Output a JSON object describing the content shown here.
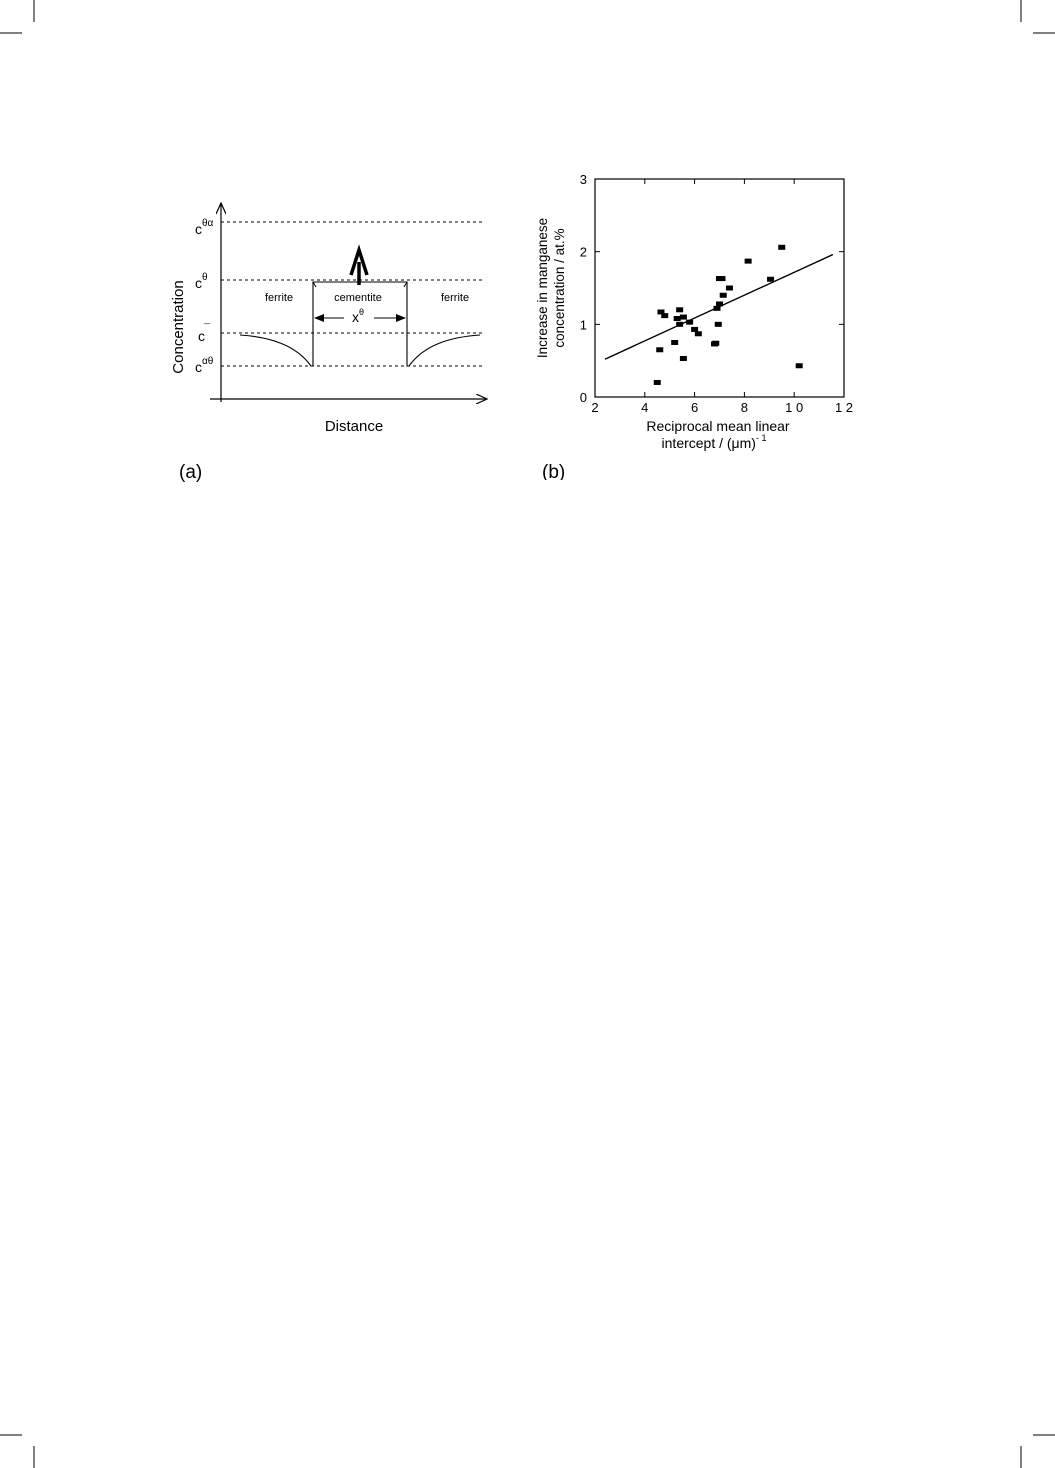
{
  "figure_a": {
    "panel_label": "(a)",
    "y_axis_label": "Concentration",
    "x_axis_label": "Distance",
    "levels": [
      {
        "base": "c",
        "sup": "θα"
      },
      {
        "base": "c",
        "sup": "θ"
      },
      {
        "base": "c",
        "sup": "¯"
      },
      {
        "base": "c",
        "sup": "αθ"
      }
    ],
    "regions": {
      "left": "ferrite",
      "middle": "cementite",
      "right": "ferrite"
    },
    "width_label": {
      "base": "x",
      "sup": "θ"
    }
  },
  "figure_b": {
    "panel_label": "(b)",
    "y_axis_label_line1": "Increase in manganese",
    "y_axis_label_line2": "concentration / at.%",
    "x_axis_label_line1": "Reciprocal mean linear",
    "x_axis_label_line2_main": "intercept / (μm)",
    "x_axis_label_line2_sup": "- 1",
    "x_tick_labels": [
      "2",
      "4",
      "6",
      "8",
      "1 0",
      "1 2"
    ],
    "y_tick_labels": [
      "0",
      "1",
      "2",
      "3"
    ]
  },
  "chart_data": {
    "type": "scatter",
    "xlabel": "Reciprocal mean linear intercept / (μm)-1",
    "ylabel": "Increase in manganese concentration / at.%",
    "xlim": [
      2,
      12
    ],
    "ylim": [
      0,
      3
    ],
    "x_ticks": [
      2,
      4,
      6,
      8,
      10,
      12
    ],
    "y_ticks": [
      0,
      1,
      2,
      3
    ],
    "points": [
      {
        "x": 4.5,
        "y": 0.2
      },
      {
        "x": 4.6,
        "y": 0.65
      },
      {
        "x": 4.65,
        "y": 1.17
      },
      {
        "x": 4.8,
        "y": 1.12
      },
      {
        "x": 5.2,
        "y": 0.75
      },
      {
        "x": 5.3,
        "y": 1.08
      },
      {
        "x": 5.4,
        "y": 1.2
      },
      {
        "x": 5.4,
        "y": 1.0
      },
      {
        "x": 5.55,
        "y": 1.1
      },
      {
        "x": 5.55,
        "y": 0.53
      },
      {
        "x": 5.8,
        "y": 1.03
      },
      {
        "x": 6.0,
        "y": 0.93
      },
      {
        "x": 6.15,
        "y": 0.87
      },
      {
        "x": 6.8,
        "y": 0.73
      },
      {
        "x": 6.85,
        "y": 0.74
      },
      {
        "x": 6.9,
        "y": 1.22
      },
      {
        "x": 6.95,
        "y": 1.0
      },
      {
        "x": 7.0,
        "y": 1.28
      },
      {
        "x": 7.0,
        "y": 1.63
      },
      {
        "x": 7.1,
        "y": 1.63
      },
      {
        "x": 7.15,
        "y": 1.4
      },
      {
        "x": 7.4,
        "y": 1.5
      },
      {
        "x": 8.15,
        "y": 1.87
      },
      {
        "x": 9.05,
        "y": 1.62
      },
      {
        "x": 9.5,
        "y": 2.06
      },
      {
        "x": 10.2,
        "y": 0.43
      }
    ],
    "fit_line": {
      "x": [
        2.4,
        11.55
      ],
      "y": [
        0.52,
        1.96
      ]
    }
  }
}
